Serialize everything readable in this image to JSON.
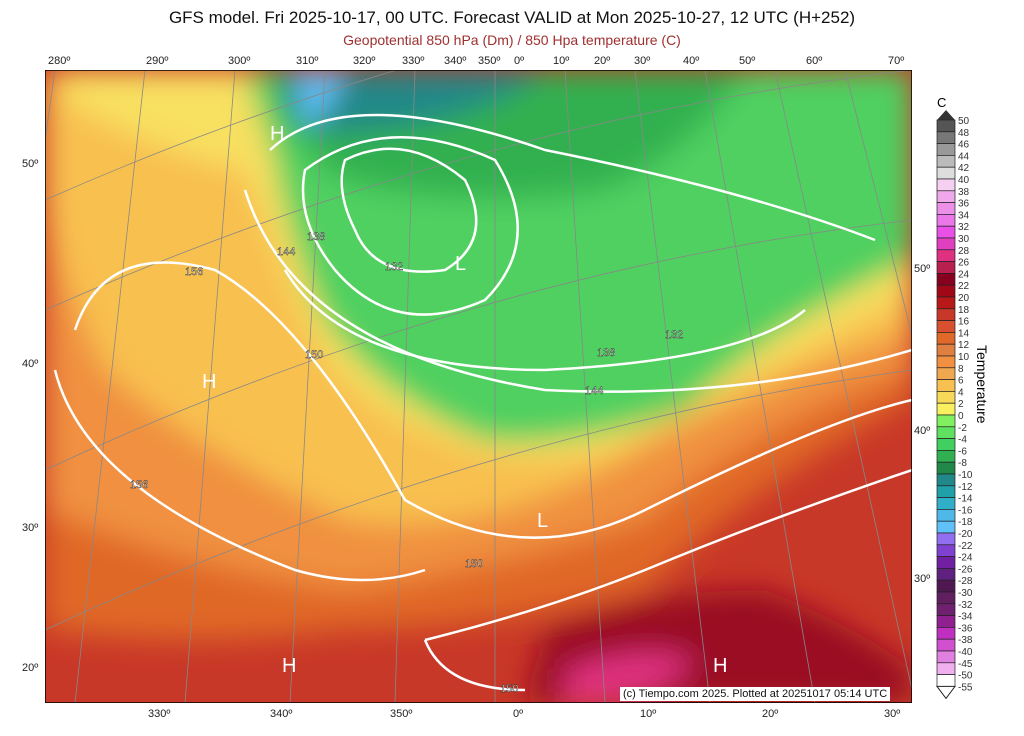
{
  "header": {
    "title": "GFS model. Fri 2025-10-17, 00 UTC. Forecast VALID at Mon 2025-10-27, 12 UTC (H+252)",
    "subtitle": "Geopotential 850 hPa (Dm) / 850 Hpa temperature (C)"
  },
  "top_lon_labels": [
    "280º",
    "290º",
    "300º",
    "310º",
    "320º",
    "330º",
    "340º",
    "350º",
    "0º",
    "10º",
    "20º",
    "30º",
    "40º",
    "50º",
    "60º",
    "70º"
  ],
  "bottom_lon_labels": [
    "330º",
    "340º",
    "350º",
    "0º",
    "10º",
    "20º",
    "30º"
  ],
  "left_lat_labels": [
    "50º",
    "40º",
    "30º",
    "20º"
  ],
  "right_lat_labels": [
    "50º",
    "40º",
    "30º"
  ],
  "contour_labels": [
    "132",
    "138",
    "144",
    "150",
    "156"
  ],
  "pressure_centers": [
    "H",
    "L"
  ],
  "credit": "(c) Tiempo.com 2025. Plotted at 20251017 05:14 UTC",
  "colorbar": {
    "unit": "C",
    "title": "Temperature",
    "levels": [
      "50",
      "48",
      "46",
      "44",
      "42",
      "40",
      "38",
      "36",
      "34",
      "32",
      "30",
      "28",
      "26",
      "24",
      "22",
      "20",
      "18",
      "16",
      "14",
      "12",
      "10",
      "8",
      "6",
      "4",
      "2",
      "0",
      "-2",
      "-4",
      "-6",
      "-8",
      "-10",
      "-12",
      "-14",
      "-16",
      "-18",
      "-20",
      "-22",
      "-24",
      "-26",
      "-28",
      "-30",
      "-32",
      "-34",
      "-36",
      "-38",
      "-40",
      "-45",
      "-50",
      "-55"
    ],
    "colors": [
      "#555555",
      "#777777",
      "#999999",
      "#bbbbbb",
      "#dddddd",
      "#f5d0f0",
      "#f0a8ec",
      "#ec90e8",
      "#ea78e8",
      "#e850e8",
      "#e040c0",
      "#e03080",
      "#b82050",
      "#880020",
      "#a00818",
      "#b81818",
      "#c83828",
      "#d85030",
      "#e06828",
      "#e08040",
      "#f09040",
      "#f0a850",
      "#f8c050",
      "#f8d858",
      "#f8f060",
      "#80f060",
      "#60e060",
      "#40d060",
      "#30b050",
      "#208848",
      "#208888",
      "#20a0a8",
      "#30b0c8",
      "#50b8e8",
      "#60c0f8",
      "#9070f0",
      "#8040d0",
      "#7020a0",
      "#602080",
      "#501850",
      "#602060",
      "#702070",
      "#902090",
      "#c030c0",
      "#d050d0",
      "#e080e0",
      "#f0b0f0",
      "#ffffff"
    ]
  }
}
